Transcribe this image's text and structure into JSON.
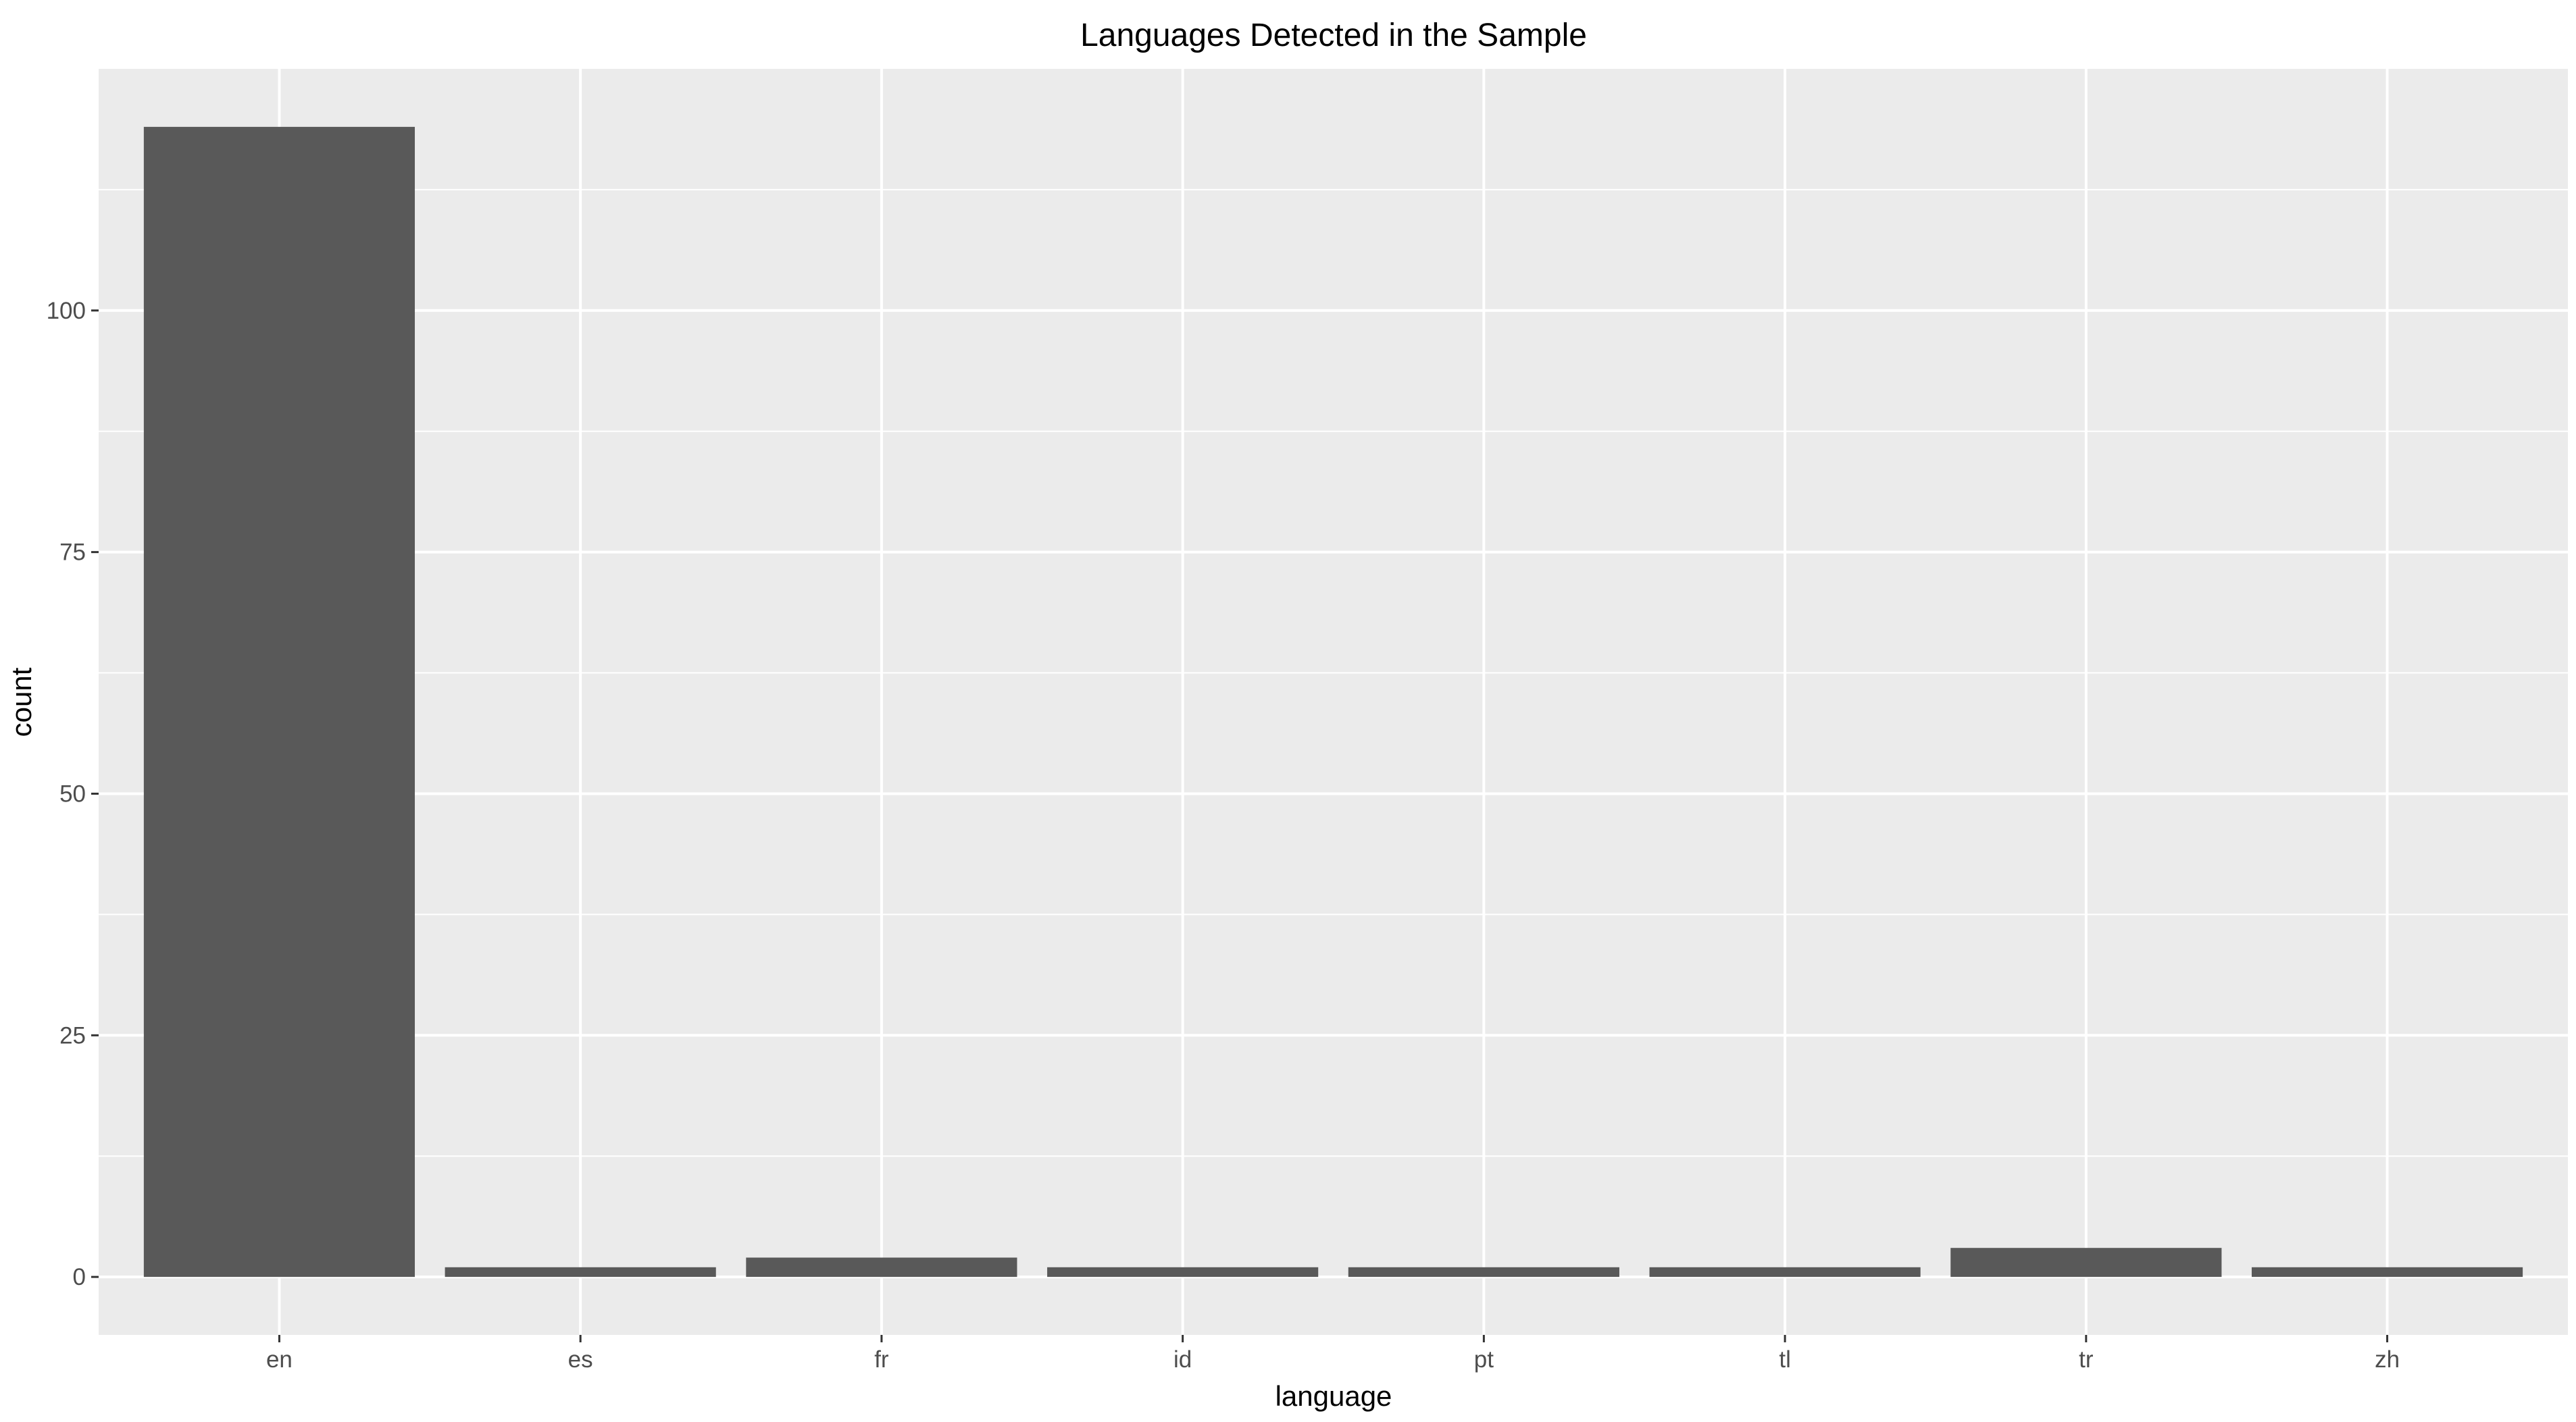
{
  "chart_data": {
    "type": "bar",
    "title": "Languages Detected in the Sample",
    "xlabel": "language",
    "ylabel": "count",
    "categories": [
      "en",
      "es",
      "fr",
      "id",
      "pt",
      "tl",
      "tr",
      "zh"
    ],
    "values": [
      119,
      1,
      2,
      1,
      1,
      1,
      3,
      1
    ],
    "ylim": [
      -6,
      125
    ],
    "yticks": [
      0,
      25,
      50,
      75,
      100
    ],
    "y_minor_ticks": [
      12.5,
      37.5,
      62.5,
      87.5,
      112.5
    ],
    "grid": true,
    "legend": "none",
    "colors": {
      "bar": "#595959",
      "panel": "#ebebeb",
      "grid": "#ffffff",
      "tick_label": "#4d4d4d",
      "tick_mark": "#333333"
    }
  }
}
